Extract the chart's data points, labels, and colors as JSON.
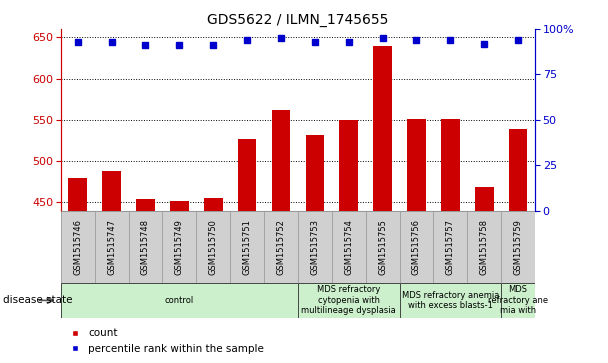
{
  "title": "GDS5622 / ILMN_1745655",
  "categories": [
    "GSM1515746",
    "GSM1515747",
    "GSM1515748",
    "GSM1515749",
    "GSM1515750",
    "GSM1515751",
    "GSM1515752",
    "GSM1515753",
    "GSM1515754",
    "GSM1515755",
    "GSM1515756",
    "GSM1515757",
    "GSM1515758",
    "GSM1515759"
  ],
  "counts": [
    479,
    488,
    454,
    452,
    455,
    527,
    562,
    532,
    550,
    640,
    551,
    551,
    469,
    539
  ],
  "percentile_ranks": [
    93,
    93,
    91,
    91,
    91,
    94,
    95,
    93,
    93,
    95,
    94,
    94,
    92,
    94
  ],
  "ylim_left": [
    440,
    660
  ],
  "ylim_right": [
    0,
    100
  ],
  "yticks_left": [
    450,
    500,
    550,
    600,
    650
  ],
  "yticks_right": [
    0,
    25,
    50,
    75,
    100
  ],
  "bar_color": "#cc0000",
  "dot_color": "#0000cc",
  "grid_color": "#000000",
  "disease_states": [
    {
      "label": "control",
      "start": 0,
      "end": 7,
      "color": "#ccf0cc"
    },
    {
      "label": "MDS refractory\ncytopenia with\nmultilineage dysplasia",
      "start": 7,
      "end": 10,
      "color": "#ccf0cc"
    },
    {
      "label": "MDS refractory anemia\nwith excess blasts-1",
      "start": 10,
      "end": 13,
      "color": "#ccf0cc"
    },
    {
      "label": "MDS\nrefractory ane\nmia with",
      "start": 13,
      "end": 14,
      "color": "#ccf0cc"
    }
  ],
  "disease_state_label": "disease state",
  "legend_count_label": "count",
  "legend_percentile_label": "percentile rank within the sample",
  "bar_width": 0.55,
  "tick_label_fontsize": 6,
  "title_fontsize": 10
}
